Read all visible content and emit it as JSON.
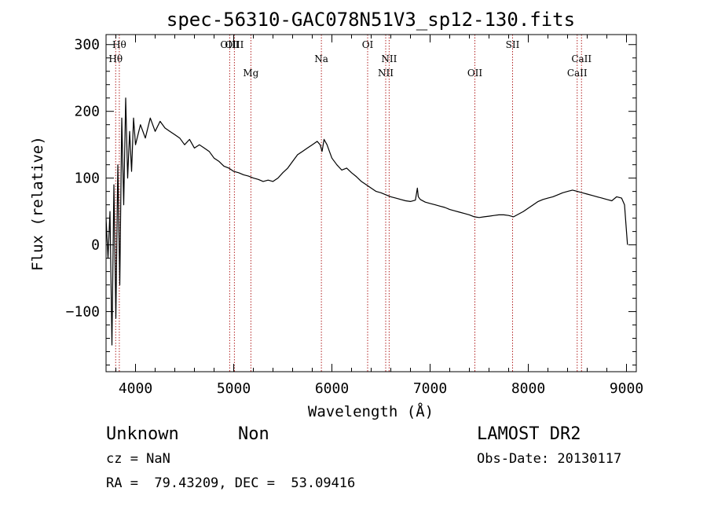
{
  "chart_data": {
    "type": "line",
    "title": "spec-56310-GAC078N51V3_sp12-130.fits",
    "xlabel": "Wavelength (Å)",
    "ylabel": "Flux (relative)",
    "xlim": [
      3700,
      9100
    ],
    "ylim": [
      -190,
      315
    ],
    "x_ticks": [
      4000,
      5000,
      6000,
      7000,
      8000,
      9000
    ],
    "y_ticks": [
      -100,
      0,
      100,
      200,
      300
    ],
    "grid": false,
    "colors": {
      "line": "#000000",
      "marker": "#b22222",
      "axis": "#000000"
    },
    "lines": [
      {
        "label": "Hθ",
        "wavelength": 3798,
        "row": 1
      },
      {
        "label": "Hθ",
        "wavelength": 3835,
        "row": 0
      },
      {
        "label": "OIII",
        "wavelength": 4959,
        "row": 0
      },
      {
        "label": "OIII",
        "wavelength": 5007,
        "row": 0
      },
      {
        "label": "Mg",
        "wavelength": 5175,
        "row": 2
      },
      {
        "label": "Na",
        "wavelength": 5893,
        "row": 1
      },
      {
        "label": "OI",
        "wavelength": 6364,
        "row": 0
      },
      {
        "label": "NII",
        "wavelength": 6548,
        "row": 2
      },
      {
        "label": "NII",
        "wavelength": 6583,
        "row": 1
      },
      {
        "label": "OII",
        "wavelength": 7456,
        "row": 2
      },
      {
        "label": "SII",
        "wavelength": 7840,
        "row": 0
      },
      {
        "label": "CaII",
        "wavelength": 8498,
        "row": 2
      },
      {
        "label": "CaII",
        "wavelength": 8542,
        "row": 1
      }
    ],
    "series": [
      {
        "x": [
          3700,
          3720,
          3740,
          3760,
          3780,
          3800,
          3820,
          3840,
          3860,
          3880,
          3900,
          3920,
          3940,
          3960,
          3980,
          4000,
          4050,
          4100,
          4150,
          4200,
          4250,
          4300,
          4350,
          4400,
          4450,
          4500,
          4550,
          4600,
          4650,
          4700,
          4750,
          4800,
          4850,
          4900,
          4950,
          5000,
          5050,
          5100,
          5150,
          5200,
          5250,
          5300,
          5350,
          5400,
          5450,
          5500,
          5550,
          5600,
          5650,
          5700,
          5750,
          5800,
          5850,
          5880,
          5900,
          5920,
          5950,
          5980,
          6000,
          6050,
          6100,
          6150,
          6200,
          6250,
          6300,
          6350,
          6400,
          6450,
          6500,
          6550,
          6600,
          6650,
          6700,
          6750,
          6800,
          6850,
          6870,
          6880,
          6900,
          6950,
          7000,
          7050,
          7100,
          7150,
          7200,
          7250,
          7300,
          7350,
          7400,
          7450,
          7500,
          7550,
          7600,
          7650,
          7700,
          7750,
          7800,
          7850,
          7900,
          7950,
          8000,
          8050,
          8100,
          8150,
          8200,
          8250,
          8300,
          8350,
          8400,
          8450,
          8500,
          8550,
          8600,
          8650,
          8700,
          8750,
          8800,
          8850,
          8900,
          8950,
          8980,
          9000,
          9010
        ],
        "y": [
          40,
          -20,
          50,
          -150,
          90,
          -110,
          120,
          -60,
          190,
          60,
          220,
          100,
          170,
          110,
          190,
          150,
          180,
          160,
          190,
          170,
          185,
          175,
          170,
          165,
          160,
          150,
          158,
          145,
          150,
          145,
          140,
          130,
          125,
          118,
          115,
          110,
          108,
          105,
          103,
          100,
          98,
          95,
          97,
          95,
          100,
          108,
          115,
          125,
          135,
          140,
          145,
          150,
          155,
          150,
          140,
          158,
          150,
          138,
          130,
          120,
          112,
          115,
          108,
          102,
          95,
          90,
          85,
          80,
          78,
          75,
          72,
          70,
          68,
          66,
          65,
          67,
          85,
          72,
          68,
          64,
          62,
          60,
          58,
          56,
          53,
          51,
          49,
          47,
          45,
          42,
          41,
          42,
          43,
          44,
          45,
          45,
          44,
          42,
          46,
          50,
          55,
          60,
          65,
          68,
          70,
          72,
          75,
          78,
          80,
          82,
          80,
          78,
          76,
          74,
          72,
          70,
          68,
          66,
          72,
          70,
          60,
          20,
          0
        ]
      }
    ]
  },
  "footer": {
    "class_label": "Unknown",
    "subclass_label": "Non",
    "survey": "LAMOST DR2",
    "cz": "cz = NaN",
    "obs_date": "Obs-Date: 20130117",
    "coords": "RA =  79.43209, DEC =  53.09416"
  }
}
